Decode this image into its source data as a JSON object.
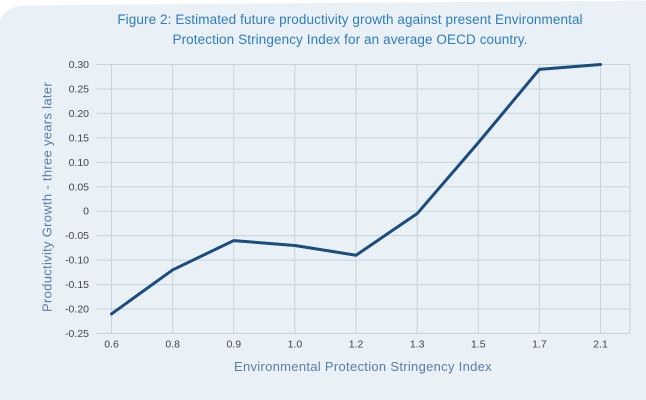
{
  "figure": {
    "title_line1": "Figure 2: Estimated future productivity growth against present Environmental",
    "title_line2": "Protection Stringency Index for an average OECD country."
  },
  "chart_data": {
    "type": "line",
    "title": "Figure 2: Estimated future productivity growth against present Environmental Protection Stringency Index for an average OECD country.",
    "categories": [
      "0.6",
      "0.8",
      "0.9",
      "1.0",
      "1.2",
      "1.3",
      "1.5",
      "1.7",
      "2.1"
    ],
    "values": [
      -0.21,
      -0.12,
      -0.06,
      -0.07,
      -0.09,
      -0.005,
      0.14,
      0.29,
      0.3
    ],
    "xlabel": "Environmental Protection Stringency Index",
    "ylabel": "Productivity Growth - three years later",
    "ylim": [
      -0.25,
      0.3
    ],
    "ytick_step": 0.05,
    "yticks": [
      "0.30",
      "0.25",
      "0.20",
      "0.15",
      "0.10",
      "0.05",
      "0",
      "-0.05",
      "-0.10",
      "-0.15",
      "-0.20",
      "-0.25"
    ],
    "grid": true,
    "legend_position": "none",
    "series_count": 1
  },
  "colors": {
    "page_bg": "#ffffff",
    "card_bg": "#e9f1f6",
    "title_text": "#2e7cc0",
    "axis_title_text": "#5b7da6",
    "tick_text": "#41464b",
    "gridline": "#c9d4da",
    "line": "#1a4c80"
  }
}
